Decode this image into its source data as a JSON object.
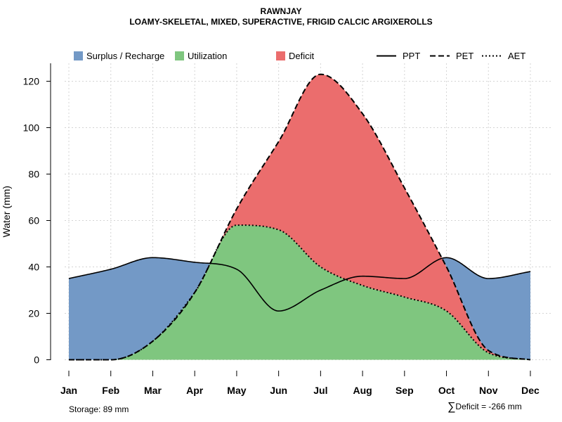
{
  "header": {
    "title": "RAWNJAY",
    "subtitle": "LOAMY-SKELETAL, MIXED, SUPERACTIVE, FRIGID CALCIC ARGIXEROLLS"
  },
  "footer": {
    "storage": "Storage: 89 mm",
    "sigma": "∑",
    "deficit": "Deficit = -266 mm"
  },
  "colors": {
    "surplus": "#7399C6",
    "utilization": "#7FC67F",
    "deficit": "#EB6D6D"
  },
  "chart_data": {
    "type": "area",
    "title": "RAWNJAY",
    "subtitle": "LOAMY-SKELETAL, MIXED, SUPERACTIVE, FRIGID CALCIC ARGIXEROLLS",
    "xlabel": "",
    "ylabel": "Water (mm)",
    "categories": [
      "Jan",
      "Feb",
      "Mar",
      "Apr",
      "May",
      "Jun",
      "Jul",
      "Aug",
      "Sep",
      "Oct",
      "Nov",
      "Dec"
    ],
    "yticks": [
      0,
      20,
      40,
      60,
      80,
      100,
      120
    ],
    "ylim": [
      0,
      128
    ],
    "grid": true,
    "legend": {
      "position": "top",
      "areas": [
        "Surplus / Recharge",
        "Utilization",
        "Deficit"
      ],
      "lines": [
        "PPT",
        "PET",
        "AET"
      ]
    },
    "series": [
      {
        "name": "PPT",
        "style": "solid",
        "values": [
          35,
          39,
          44,
          42,
          39,
          21,
          30,
          36,
          35,
          44,
          35,
          38
        ]
      },
      {
        "name": "PET",
        "style": "dashed",
        "values": [
          0,
          0,
          8,
          29,
          65,
          94,
          123,
          106,
          74,
          40,
          4,
          0
        ]
      },
      {
        "name": "AET",
        "style": "dotted",
        "values": [
          0,
          0,
          8,
          29,
          58,
          56,
          40,
          32,
          27,
          21,
          3,
          0
        ]
      }
    ],
    "storage": "Storage: 89 mm",
    "deficit_total": -266
  }
}
